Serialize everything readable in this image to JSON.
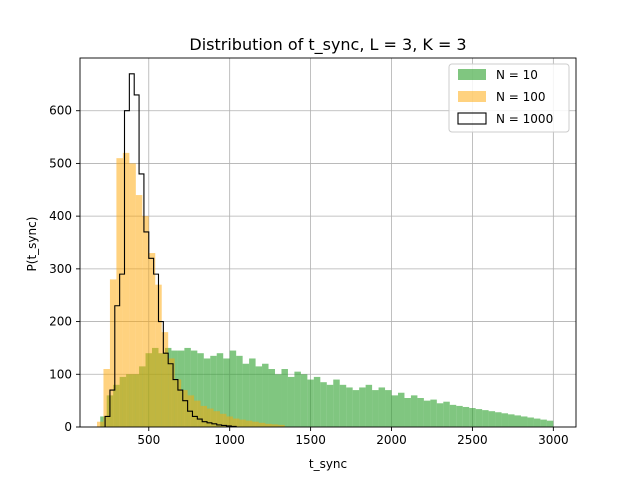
{
  "chart_data": {
    "type": "histogram",
    "title": "Distribution of t_sync, L = 3, K = 3",
    "xlabel": "t_sync",
    "ylabel": "P(t_sync)",
    "xlim": [
      75,
      3140
    ],
    "ylim": [
      0,
      700
    ],
    "xticks": [
      500,
      1000,
      1500,
      2000,
      2500,
      3000
    ],
    "yticks": [
      0,
      100,
      200,
      300,
      400,
      500,
      600
    ],
    "grid": true,
    "legend_position": "top-right",
    "series": [
      {
        "name": "N = 10",
        "style": "filled",
        "color": "#2ca02c",
        "opacity": 0.6,
        "bins": [
          [
            200,
            20
          ],
          [
            240,
            60
          ],
          [
            280,
            80
          ],
          [
            320,
            95
          ],
          [
            360,
            100
          ],
          [
            400,
            100
          ],
          [
            440,
            115
          ],
          [
            480,
            140
          ],
          [
            520,
            150
          ],
          [
            560,
            140
          ],
          [
            600,
            150
          ],
          [
            640,
            145
          ],
          [
            680,
            145
          ],
          [
            720,
            150
          ],
          [
            760,
            145
          ],
          [
            800,
            140
          ],
          [
            840,
            130
          ],
          [
            880,
            135
          ],
          [
            920,
            140
          ],
          [
            960,
            130
          ],
          [
            1000,
            145
          ],
          [
            1040,
            135
          ],
          [
            1080,
            120
          ],
          [
            1120,
            130
          ],
          [
            1160,
            115
          ],
          [
            1200,
            120
          ],
          [
            1240,
            110
          ],
          [
            1280,
            100
          ],
          [
            1320,
            110
          ],
          [
            1360,
            95
          ],
          [
            1400,
            105
          ],
          [
            1440,
            100
          ],
          [
            1480,
            90
          ],
          [
            1520,
            95
          ],
          [
            1560,
            85
          ],
          [
            1600,
            80
          ],
          [
            1640,
            90
          ],
          [
            1680,
            80
          ],
          [
            1720,
            75
          ],
          [
            1760,
            70
          ],
          [
            1800,
            75
          ],
          [
            1840,
            80
          ],
          [
            1880,
            70
          ],
          [
            1920,
            75
          ],
          [
            1960,
            70
          ],
          [
            2000,
            60
          ],
          [
            2040,
            65
          ],
          [
            2080,
            55
          ],
          [
            2120,
            60
          ],
          [
            2160,
            55
          ],
          [
            2200,
            50
          ],
          [
            2240,
            52
          ],
          [
            2280,
            45
          ],
          [
            2320,
            48
          ],
          [
            2360,
            42
          ],
          [
            2400,
            40
          ],
          [
            2440,
            38
          ],
          [
            2480,
            36
          ],
          [
            2520,
            34
          ],
          [
            2560,
            32
          ],
          [
            2600,
            30
          ],
          [
            2640,
            28
          ],
          [
            2680,
            26
          ],
          [
            2720,
            24
          ],
          [
            2760,
            22
          ],
          [
            2800,
            20
          ],
          [
            2840,
            18
          ],
          [
            2880,
            16
          ],
          [
            2920,
            14
          ],
          [
            2960,
            12
          ],
          [
            3000,
            0
          ]
        ]
      },
      {
        "name": "N = 100",
        "style": "filled",
        "color": "#ffa500",
        "opacity": 0.5,
        "bins": [
          [
            180,
            10
          ],
          [
            220,
            110
          ],
          [
            260,
            280
          ],
          [
            300,
            510
          ],
          [
            340,
            520
          ],
          [
            380,
            500
          ],
          [
            420,
            440
          ],
          [
            460,
            400
          ],
          [
            500,
            330
          ],
          [
            540,
            270
          ],
          [
            580,
            180
          ],
          [
            620,
            130
          ],
          [
            660,
            90
          ],
          [
            700,
            70
          ],
          [
            740,
            60
          ],
          [
            780,
            50
          ],
          [
            820,
            40
          ],
          [
            860,
            35
          ],
          [
            900,
            30
          ],
          [
            940,
            25
          ],
          [
            980,
            20
          ],
          [
            1020,
            16
          ],
          [
            1060,
            14
          ],
          [
            1100,
            12
          ],
          [
            1140,
            10
          ],
          [
            1180,
            8
          ],
          [
            1220,
            6
          ],
          [
            1260,
            5
          ],
          [
            1300,
            4
          ],
          [
            1340,
            0
          ]
        ]
      },
      {
        "name": "N = 1000",
        "style": "step",
        "color": "#000000",
        "bins": [
          [
            230,
            20
          ],
          [
            260,
            70
          ],
          [
            290,
            230
          ],
          [
            320,
            290
          ],
          [
            350,
            600
          ],
          [
            380,
            670
          ],
          [
            410,
            630
          ],
          [
            440,
            480
          ],
          [
            470,
            370
          ],
          [
            500,
            320
          ],
          [
            530,
            290
          ],
          [
            560,
            200
          ],
          [
            590,
            140
          ],
          [
            620,
            120
          ],
          [
            650,
            90
          ],
          [
            680,
            70
          ],
          [
            710,
            50
          ],
          [
            740,
            30
          ],
          [
            770,
            20
          ],
          [
            800,
            15
          ],
          [
            830,
            10
          ],
          [
            860,
            8
          ],
          [
            890,
            6
          ],
          [
            920,
            4
          ],
          [
            950,
            3
          ],
          [
            980,
            2
          ],
          [
            1010,
            1
          ],
          [
            1040,
            0
          ]
        ]
      }
    ]
  }
}
